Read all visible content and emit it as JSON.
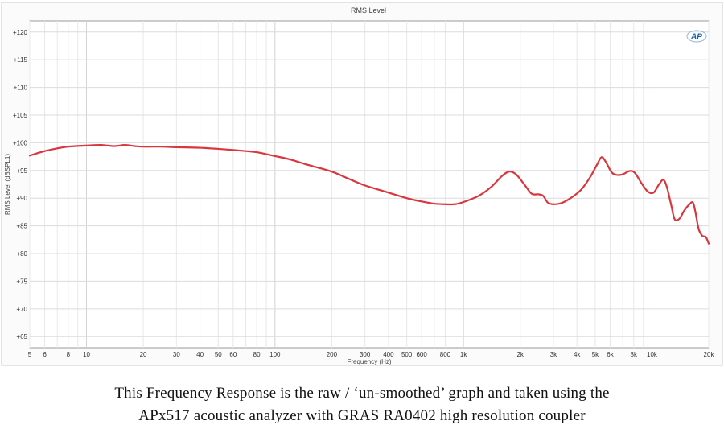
{
  "chart_data": {
    "type": "line",
    "title": "RMS Level",
    "xlabel": "Frequency (Hz)",
    "ylabel": "RMS Level (dBSPL1)",
    "xscale": "log",
    "xlim": [
      5,
      20000
    ],
    "ylim": [
      63,
      122
    ],
    "grid": true,
    "x_ticks": [
      5,
      6,
      8,
      10,
      20,
      30,
      40,
      50,
      60,
      80,
      100,
      200,
      300,
      400,
      500,
      600,
      800,
      1000,
      2000,
      3000,
      4000,
      5000,
      6000,
      8000,
      10000,
      20000
    ],
    "x_tick_labels": [
      "5",
      "6",
      "8",
      "10",
      "20",
      "30",
      "40",
      "50",
      "60",
      "80",
      "100",
      "200",
      "300",
      "400",
      "500",
      "600",
      "800",
      "1k",
      "2k",
      "3k",
      "4k",
      "5k",
      "6k",
      "8k",
      "10k",
      "20k"
    ],
    "y_ticks": [
      65,
      70,
      75,
      80,
      85,
      90,
      95,
      100,
      105,
      110,
      115,
      120
    ],
    "y_tick_labels": [
      "+65",
      "+70",
      "+75",
      "+80",
      "+85",
      "+90",
      "+95",
      "+100",
      "+105",
      "+110",
      "+115",
      "+120"
    ],
    "series": [
      {
        "color": "#d9363e",
        "points": [
          [
            5,
            97.7
          ],
          [
            6,
            98.5
          ],
          [
            7,
            99.0
          ],
          [
            8,
            99.3
          ],
          [
            10,
            99.5
          ],
          [
            12,
            99.6
          ],
          [
            14,
            99.4
          ],
          [
            16,
            99.6
          ],
          [
            18,
            99.4
          ],
          [
            20,
            99.3
          ],
          [
            25,
            99.3
          ],
          [
            30,
            99.2
          ],
          [
            40,
            99.1
          ],
          [
            50,
            98.9
          ],
          [
            60,
            98.7
          ],
          [
            70,
            98.5
          ],
          [
            80,
            98.3
          ],
          [
            100,
            97.6
          ],
          [
            120,
            97.0
          ],
          [
            150,
            96.0
          ],
          [
            200,
            94.8
          ],
          [
            250,
            93.4
          ],
          [
            300,
            92.3
          ],
          [
            400,
            91.0
          ],
          [
            500,
            90.0
          ],
          [
            600,
            89.4
          ],
          [
            700,
            89.0
          ],
          [
            800,
            88.9
          ],
          [
            900,
            88.9
          ],
          [
            1000,
            89.3
          ],
          [
            1200,
            90.4
          ],
          [
            1400,
            92.0
          ],
          [
            1600,
            94.0
          ],
          [
            1750,
            94.8
          ],
          [
            1900,
            94.3
          ],
          [
            2100,
            92.5
          ],
          [
            2300,
            90.8
          ],
          [
            2500,
            90.7
          ],
          [
            2650,
            90.4
          ],
          [
            2800,
            89.2
          ],
          [
            3000,
            88.9
          ],
          [
            3300,
            89.1
          ],
          [
            3700,
            90.0
          ],
          [
            4200,
            91.5
          ],
          [
            4700,
            93.8
          ],
          [
            5100,
            96.0
          ],
          [
            5400,
            97.4
          ],
          [
            5700,
            96.5
          ],
          [
            6100,
            94.7
          ],
          [
            6500,
            94.2
          ],
          [
            7000,
            94.3
          ],
          [
            7600,
            94.9
          ],
          [
            8100,
            94.6
          ],
          [
            8800,
            92.7
          ],
          [
            9500,
            91.2
          ],
          [
            10200,
            91.0
          ],
          [
            10900,
            92.5
          ],
          [
            11500,
            93.3
          ],
          [
            12000,
            92.0
          ],
          [
            12600,
            89.0
          ],
          [
            13200,
            86.2
          ],
          [
            14000,
            86.3
          ],
          [
            14800,
            87.7
          ],
          [
            15800,
            88.9
          ],
          [
            16500,
            89.2
          ],
          [
            17000,
            87.5
          ],
          [
            17700,
            84.4
          ],
          [
            18500,
            83.2
          ],
          [
            19300,
            83.0
          ],
          [
            20000,
            81.8
          ]
        ]
      }
    ]
  },
  "logo": {
    "text": "AP",
    "color": "#1a5fa8"
  },
  "caption": {
    "line1": "This Frequency Response is the raw / ‘un-smoothed’ graph and taken using the",
    "line2": "APx517 acoustic analyzer with GRAS RA0402 high resolution coupler"
  }
}
